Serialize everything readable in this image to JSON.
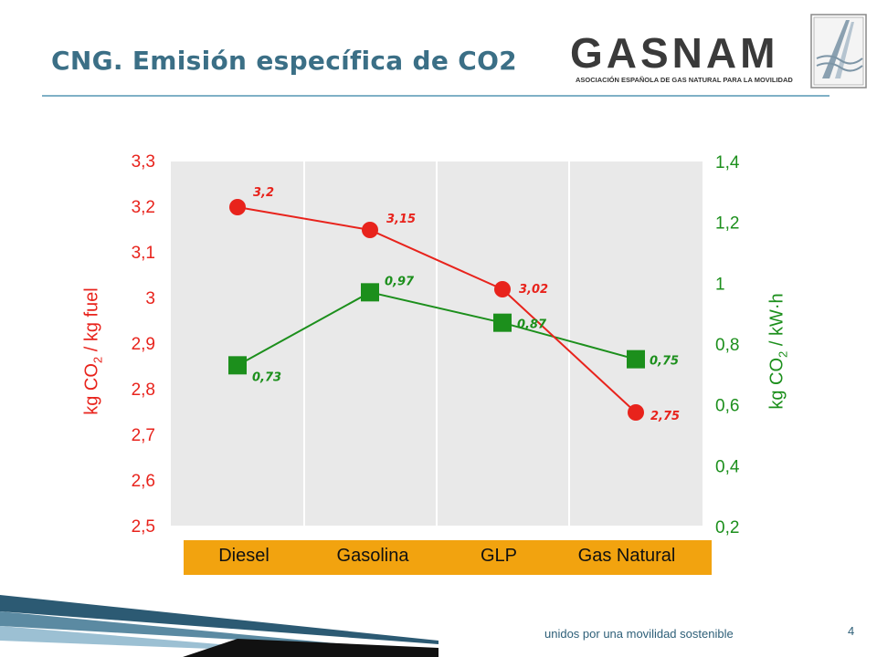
{
  "slide": {
    "title": "CNG. Emisión específica de CO2",
    "footer": "unidos por una movilidad sostenible",
    "page_number": "4"
  },
  "logo": {
    "name": "GASNAM",
    "tagline": "ASOCIACIÓN ESPAÑOLA DE GAS NATURAL PARA LA MOVILIDAD"
  },
  "colors": {
    "title": "#3b6f86",
    "series_fuel": "#e8231c",
    "series_kwh": "#1c8f1c",
    "category_band": "#f2a30f",
    "plot_bg": "#e9e9e9"
  },
  "chart_data": {
    "type": "line",
    "categories": [
      "Diesel",
      "Gasolina",
      "GLP",
      "Gas Natural"
    ],
    "series": [
      {
        "axis": "left",
        "marker": "circle",
        "values": [
          3.2,
          3.15,
          3.02,
          2.75
        ],
        "labels": [
          "3,2",
          "3,15",
          "3,02",
          "2,75"
        ]
      },
      {
        "axis": "right",
        "marker": "square",
        "values": [
          0.73,
          0.97,
          0.87,
          0.75
        ],
        "labels": [
          "0,73",
          "0,97",
          "0,87",
          "0,75"
        ]
      }
    ],
    "y_left": {
      "label_main": "kg CO",
      "label_sub": "2",
      "label_rest": " / kg fuel",
      "range": [
        2.5,
        3.3
      ],
      "ticks": [
        "2,5",
        "2,6",
        "2,7",
        "2,8",
        "2,9",
        "3",
        "3,1",
        "3,2",
        "3,3"
      ]
    },
    "y_right": {
      "label_main": "kg CO",
      "label_sub": "2",
      "label_rest": " / kW·h",
      "range": [
        0.2,
        1.4
      ],
      "ticks": [
        "0,2",
        "0,4",
        "0,6",
        "0,8",
        "1",
        "1,2",
        "1,4"
      ]
    },
    "grid": "vertical"
  }
}
